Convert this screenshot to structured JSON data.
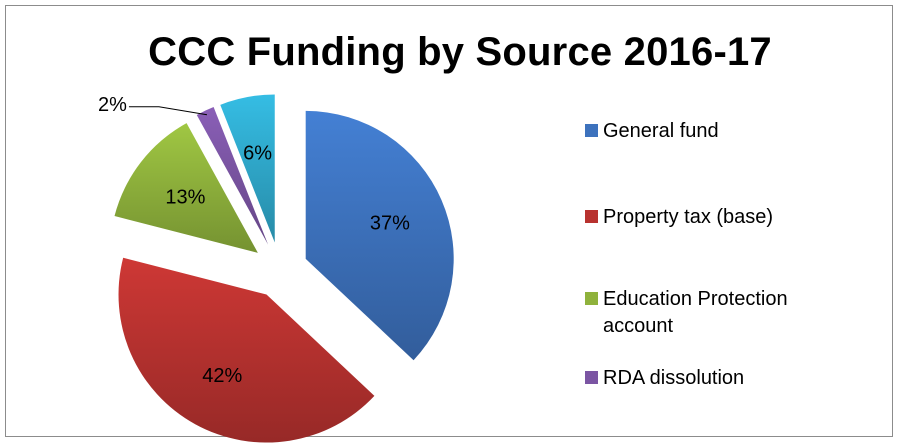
{
  "chart_data": {
    "type": "pie",
    "title": "CCC Funding by Source 2016-17",
    "slices": [
      {
        "name": "General fund",
        "value": 37,
        "label": "37%",
        "color": "#3d72bd"
      },
      {
        "name": "Property tax (base)",
        "value": 42,
        "label": "42%",
        "color": "#b8322f"
      },
      {
        "name": "Education Protection account",
        "value": 13,
        "label": "13%",
        "color": "#8fb23c"
      },
      {
        "name": "RDA dissolution",
        "value": 2,
        "label": "2%",
        "color": "#7b55a3"
      },
      {
        "name": "",
        "value": 6,
        "label": "6%",
        "color": "#2fa9cc"
      }
    ],
    "legend": [
      {
        "label": "General fund",
        "color": "#3d72bd"
      },
      {
        "label": "Property tax (base)",
        "color": "#b8322f"
      },
      {
        "label": "Education Protection account",
        "color": "#8fb23c"
      },
      {
        "label": "RDA dissolution",
        "color": "#7b55a3"
      }
    ],
    "legend_position": "right",
    "exploded": true
  }
}
